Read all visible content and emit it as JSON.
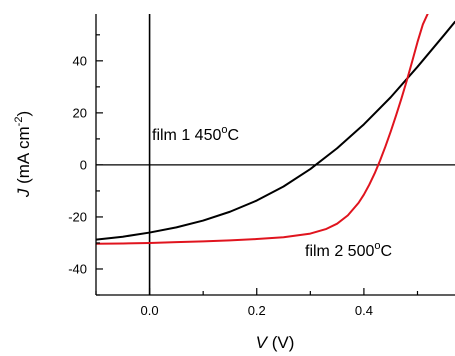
{
  "chart_data": {
    "type": "line",
    "xlabel": {
      "symbol": "V",
      "unit": " (V)"
    },
    "ylabel": {
      "symbol": "J",
      "unit_prefix": " (mA cm",
      "superscript": "-2",
      "unit_suffix": ")"
    },
    "xlim": [
      -0.1,
      0.57
    ],
    "ylim": [
      -50,
      58
    ],
    "xticks": [
      0.0,
      0.2,
      0.4
    ],
    "xtick_labels": [
      "0.0",
      "0.2",
      "0.4"
    ],
    "yticks": [
      -40,
      -20,
      0,
      20,
      40
    ],
    "ytick_labels": [
      "-40",
      "-20",
      "0",
      "20",
      "40"
    ],
    "grid": false,
    "reference_lines": {
      "x": 0,
      "y": 0
    },
    "annotations": [
      {
        "series": "film 1",
        "text": "film 1  450",
        "degree": "o",
        "unit": "C"
      },
      {
        "series": "film 2",
        "text": "film 2  500",
        "degree": "o",
        "unit": "C"
      }
    ],
    "series": [
      {
        "name": "film 1",
        "color": "#000000",
        "x": [
          -0.1,
          -0.05,
          0.0,
          0.05,
          0.1,
          0.15,
          0.2,
          0.25,
          0.3,
          0.35,
          0.4,
          0.45,
          0.5,
          0.55,
          0.57
        ],
        "y": [
          -28.7,
          -27.6,
          -26.0,
          -24.0,
          -21.4,
          -18.0,
          -13.7,
          -8.3,
          -1.6,
          6.4,
          15.6,
          26.0,
          37.7,
          50.0,
          55.0
        ]
      },
      {
        "name": "film 2",
        "color": "#e0141e",
        "x": [
          -0.1,
          -0.05,
          0.0,
          0.05,
          0.1,
          0.15,
          0.2,
          0.25,
          0.3,
          0.33,
          0.35,
          0.37,
          0.39,
          0.4,
          0.41,
          0.42,
          0.43,
          0.44,
          0.45,
          0.46,
          0.47,
          0.48,
          0.49,
          0.5,
          0.51,
          0.52
        ],
        "y": [
          -30.3,
          -30.2,
          -30.0,
          -29.7,
          -29.4,
          -29.0,
          -28.5,
          -27.8,
          -26.4,
          -24.6,
          -22.6,
          -19.4,
          -14.6,
          -11.4,
          -7.6,
          -3.3,
          1.6,
          7.0,
          12.8,
          19.0,
          25.5,
          32.4,
          39.7,
          47.2,
          54.0,
          58.5
        ]
      }
    ]
  }
}
